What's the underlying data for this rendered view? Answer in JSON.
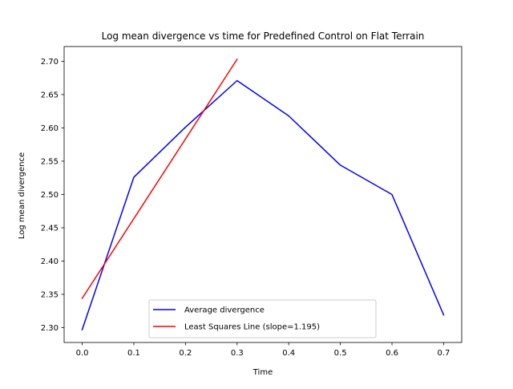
{
  "chart_data": {
    "type": "line",
    "title": "Log mean divergence vs time for Predefined Control on Flat Terrain",
    "xlabel": "Time",
    "ylabel": "Log mean divergence",
    "xlim": [
      -0.035,
      0.735
    ],
    "ylim": [
      2.2777,
      2.7222
    ],
    "x_ticks": [
      0.0,
      0.1,
      0.2,
      0.3,
      0.4,
      0.5,
      0.6,
      0.7
    ],
    "x_tick_labels": [
      "0.0",
      "0.1",
      "0.2",
      "0.3",
      "0.4",
      "0.5",
      "0.6",
      "0.7"
    ],
    "y_ticks": [
      2.3,
      2.35,
      2.4,
      2.45,
      2.5,
      2.55,
      2.6,
      2.65,
      2.7
    ],
    "y_tick_labels": [
      "2.30",
      "2.35",
      "2.40",
      "2.45",
      "2.50",
      "2.55",
      "2.60",
      "2.65",
      "2.70"
    ],
    "grid": false,
    "legend_position": "bottom-center",
    "series": [
      {
        "name": "Average divergence",
        "color": "#0000ff",
        "x": [
          0.0,
          0.1,
          0.2,
          0.3,
          0.4,
          0.5,
          0.6,
          0.7
        ],
        "y": [
          2.297,
          2.526,
          2.601,
          2.671,
          2.618,
          2.544,
          2.5,
          2.319
        ]
      },
      {
        "name": "Least Squares Line (slope=1.195)",
        "color": "#ff0000",
        "x": [
          0.0,
          0.3
        ],
        "y": [
          2.344,
          2.703
        ]
      }
    ]
  }
}
